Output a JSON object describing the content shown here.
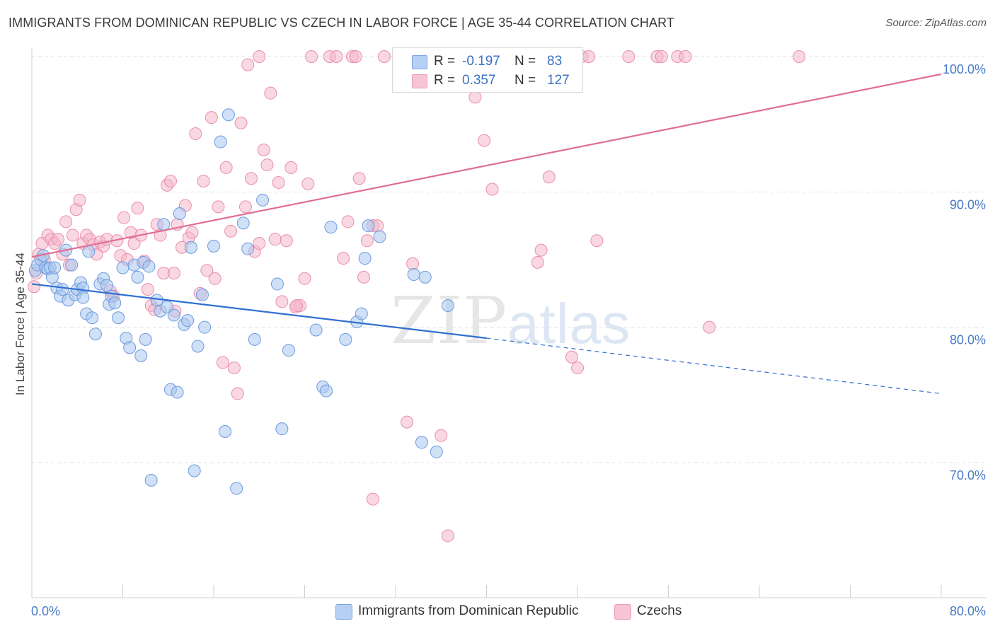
{
  "header": {
    "title": "IMMIGRANTS FROM DOMINICAN REPUBLIC VS CZECH IN LABOR FORCE | AGE 35-44 CORRELATION CHART",
    "source": "Source: ZipAtlas.com"
  },
  "watermark": {
    "part1": "ZIP",
    "part2": "atlas"
  },
  "legend": {
    "r_label": "R =",
    "n_label": "N =",
    "rows": [
      {
        "r": "-0.197",
        "n": "83"
      },
      {
        "r": "0.357",
        "n": "127"
      }
    ]
  },
  "colors": {
    "blue_fill": "#a9c6ee",
    "blue_stroke": "#6d9be0",
    "blue_line": "#2f6fd0",
    "pink_fill": "#f4b8cb",
    "pink_stroke": "#ea8eac",
    "pink_line": "#e06d95",
    "grid": "#e3e3e3",
    "tick_text": "#4a7bc8"
  },
  "chart_data": {
    "type": "scatter",
    "title": "IMMIGRANTS FROM DOMINICAN REPUBLIC VS CZECH IN LABOR FORCE | AGE 35-44 CORRELATION CHART",
    "xlabel": "",
    "ylabel": "In Labor Force | Age 35-44",
    "xlim": [
      0,
      80
    ],
    "ylim": [
      60,
      102
    ],
    "x_tick_labels": [
      "0.0%",
      "80.0%"
    ],
    "y_ticks": [
      70,
      80,
      90,
      100
    ],
    "y_tick_labels": [
      "70.0%",
      "80.0%",
      "90.0%",
      "100.0%"
    ],
    "grid": true,
    "legend_position": "bottom",
    "series": [
      {
        "name": "Immigrants from Dominican Republic",
        "color": "#a9c6ee",
        "trend": {
          "x": [
            0,
            40,
            80
          ],
          "y": [
            83.2,
            79.2,
            75.1
          ],
          "solid_until": 40
        },
        "points": [
          [
            0.3,
            84.2
          ],
          [
            0.5,
            84.6
          ],
          [
            0.8,
            85.0
          ],
          [
            1.0,
            85.3
          ],
          [
            1.2,
            84.4
          ],
          [
            1.4,
            84.3
          ],
          [
            1.6,
            84.4
          ],
          [
            1.8,
            83.7
          ],
          [
            2.0,
            84.4
          ],
          [
            2.2,
            82.9
          ],
          [
            2.5,
            82.3
          ],
          [
            2.7,
            82.8
          ],
          [
            3.0,
            85.7
          ],
          [
            3.2,
            82.0
          ],
          [
            3.5,
            84.6
          ],
          [
            3.8,
            82.4
          ],
          [
            4.0,
            82.8
          ],
          [
            4.3,
            83.3
          ],
          [
            4.5,
            82.9
          ],
          [
            4.8,
            81.0
          ],
          [
            5.0,
            85.6
          ],
          [
            5.3,
            80.7
          ],
          [
            5.6,
            79.5
          ],
          [
            6.0,
            83.2
          ],
          [
            6.3,
            83.6
          ],
          [
            6.6,
            83.1
          ],
          [
            6.8,
            81.7
          ],
          [
            7.0,
            82.3
          ],
          [
            7.3,
            81.8
          ],
          [
            7.6,
            80.7
          ],
          [
            8.0,
            84.4
          ],
          [
            8.3,
            79.2
          ],
          [
            8.6,
            78.5
          ],
          [
            9.0,
            84.6
          ],
          [
            9.3,
            83.7
          ],
          [
            9.6,
            77.9
          ],
          [
            9.8,
            84.8
          ],
          [
            10.0,
            79.1
          ],
          [
            10.3,
            84.5
          ],
          [
            10.5,
            68.7
          ],
          [
            11.0,
            82.0
          ],
          [
            11.3,
            81.2
          ],
          [
            11.6,
            87.6
          ],
          [
            11.9,
            81.5
          ],
          [
            12.2,
            75.4
          ],
          [
            12.5,
            80.9
          ],
          [
            12.8,
            75.2
          ],
          [
            13.0,
            88.4
          ],
          [
            13.4,
            80.2
          ],
          [
            13.7,
            80.5
          ],
          [
            14.0,
            85.9
          ],
          [
            14.3,
            69.4
          ],
          [
            14.6,
            78.6
          ],
          [
            15.0,
            82.4
          ],
          [
            15.2,
            80.0
          ],
          [
            16.0,
            86.0
          ],
          [
            16.6,
            93.7
          ],
          [
            17.0,
            72.3
          ],
          [
            17.3,
            95.7
          ],
          [
            18.0,
            68.1
          ],
          [
            18.6,
            87.7
          ],
          [
            19.0,
            85.8
          ],
          [
            19.6,
            79.1
          ],
          [
            20.3,
            89.4
          ],
          [
            21.6,
            83.2
          ],
          [
            22.0,
            72.5
          ],
          [
            22.6,
            78.3
          ],
          [
            25.0,
            79.8
          ],
          [
            25.6,
            75.6
          ],
          [
            25.9,
            75.3
          ],
          [
            26.3,
            87.4
          ],
          [
            27.6,
            79.1
          ],
          [
            28.6,
            80.4
          ],
          [
            29.0,
            81.0
          ],
          [
            29.3,
            85.1
          ],
          [
            29.6,
            87.5
          ],
          [
            30.6,
            86.7
          ],
          [
            33.6,
            83.9
          ],
          [
            34.3,
            71.5
          ],
          [
            34.6,
            83.7
          ],
          [
            35.6,
            70.8
          ],
          [
            36.6,
            81.6
          ],
          [
            4.5,
            82.2
          ]
        ]
      },
      {
        "name": "Czechs",
        "color": "#f4b8cb",
        "trend": {
          "x": [
            0,
            80
          ],
          "y": [
            85.2,
            98.7
          ]
        },
        "points": [
          [
            0.2,
            83.0
          ],
          [
            0.4,
            84.0
          ],
          [
            0.6,
            85.4
          ],
          [
            0.9,
            86.2
          ],
          [
            1.1,
            85.0
          ],
          [
            1.4,
            86.8
          ],
          [
            1.7,
            86.5
          ],
          [
            2.0,
            86.2
          ],
          [
            2.3,
            86.5
          ],
          [
            2.7,
            85.4
          ],
          [
            3.0,
            87.8
          ],
          [
            3.3,
            84.6
          ],
          [
            3.6,
            86.8
          ],
          [
            3.9,
            88.7
          ],
          [
            4.2,
            89.4
          ],
          [
            4.5,
            86.2
          ],
          [
            4.8,
            86.8
          ],
          [
            5.1,
            86.5
          ],
          [
            5.4,
            86.1
          ],
          [
            5.7,
            85.4
          ],
          [
            6.0,
            86.3
          ],
          [
            6.3,
            86.0
          ],
          [
            6.6,
            86.5
          ],
          [
            6.9,
            82.7
          ],
          [
            7.2,
            82.3
          ],
          [
            7.5,
            86.4
          ],
          [
            7.8,
            85.3
          ],
          [
            8.1,
            88.1
          ],
          [
            8.4,
            85.0
          ],
          [
            8.7,
            87.0
          ],
          [
            9.0,
            86.2
          ],
          [
            9.3,
            88.8
          ],
          [
            9.6,
            86.8
          ],
          [
            9.9,
            84.9
          ],
          [
            10.2,
            82.8
          ],
          [
            10.5,
            81.6
          ],
          [
            10.8,
            81.3
          ],
          [
            11.0,
            87.6
          ],
          [
            11.3,
            86.8
          ],
          [
            11.6,
            84.0
          ],
          [
            11.9,
            90.5
          ],
          [
            12.2,
            90.8
          ],
          [
            12.5,
            84.0
          ],
          [
            12.8,
            87.6
          ],
          [
            13.2,
            85.9
          ],
          [
            13.5,
            89.0
          ],
          [
            13.8,
            86.6
          ],
          [
            14.1,
            87.0
          ],
          [
            14.4,
            94.3
          ],
          [
            14.8,
            82.5
          ],
          [
            15.1,
            90.8
          ],
          [
            15.4,
            84.2
          ],
          [
            15.8,
            95.5
          ],
          [
            16.1,
            83.6
          ],
          [
            16.4,
            88.9
          ],
          [
            16.8,
            77.4
          ],
          [
            17.1,
            91.8
          ],
          [
            17.5,
            87.1
          ],
          [
            17.8,
            77.0
          ],
          [
            18.1,
            75.1
          ],
          [
            18.4,
            95.1
          ],
          [
            18.8,
            88.9
          ],
          [
            19.0,
            99.4
          ],
          [
            19.3,
            91.0
          ],
          [
            19.6,
            85.6
          ],
          [
            20.0,
            86.2
          ],
          [
            20.4,
            93.1
          ],
          [
            20.7,
            92.0
          ],
          [
            21.0,
            97.3
          ],
          [
            21.4,
            86.5
          ],
          [
            21.7,
            90.7
          ],
          [
            22.0,
            81.9
          ],
          [
            22.4,
            86.4
          ],
          [
            22.8,
            91.8
          ],
          [
            23.2,
            81.5
          ],
          [
            23.6,
            81.6
          ],
          [
            24.0,
            83.6
          ],
          [
            24.3,
            90.6
          ],
          [
            24.6,
            100.0
          ],
          [
            26.2,
            100.0
          ],
          [
            26.8,
            100.0
          ],
          [
            27.4,
            85.1
          ],
          [
            27.8,
            87.8
          ],
          [
            28.2,
            100.0
          ],
          [
            28.5,
            100.0
          ],
          [
            28.8,
            91.0
          ],
          [
            29.2,
            83.7
          ],
          [
            29.5,
            86.4
          ],
          [
            30.0,
            87.5
          ],
          [
            30.4,
            87.5
          ],
          [
            31.0,
            100.0
          ],
          [
            32.5,
            100.0
          ],
          [
            33.0,
            73.0
          ],
          [
            33.5,
            84.7
          ],
          [
            34.0,
            100.0
          ],
          [
            35.4,
            100.0
          ],
          [
            36.0,
            72.0
          ],
          [
            36.6,
            64.6
          ],
          [
            37.5,
            100.0
          ],
          [
            39.0,
            97.0
          ],
          [
            39.8,
            93.8
          ],
          [
            40.5,
            90.2
          ],
          [
            41.0,
            100.0
          ],
          [
            42.0,
            100.0
          ],
          [
            43.0,
            100.0
          ],
          [
            44.5,
            84.8
          ],
          [
            44.8,
            85.7
          ],
          [
            45.5,
            91.1
          ],
          [
            47.5,
            77.8
          ],
          [
            48.0,
            77.0
          ],
          [
            48.4,
            100.0
          ],
          [
            49.0,
            100.0
          ],
          [
            49.7,
            86.4
          ],
          [
            52.5,
            100.0
          ],
          [
            55.0,
            100.0
          ],
          [
            55.4,
            100.0
          ],
          [
            56.8,
            100.0
          ],
          [
            57.5,
            100.0
          ],
          [
            59.6,
            80.0
          ],
          [
            67.5,
            100.0
          ],
          [
            30.0,
            67.3
          ],
          [
            23.3,
            81.6
          ],
          [
            12.6,
            81.2
          ],
          [
            20.0,
            100.0
          ],
          [
            46.5,
            100.0
          ],
          [
            38.0,
            100.0
          ],
          [
            41.8,
            100.0
          ]
        ]
      }
    ]
  }
}
